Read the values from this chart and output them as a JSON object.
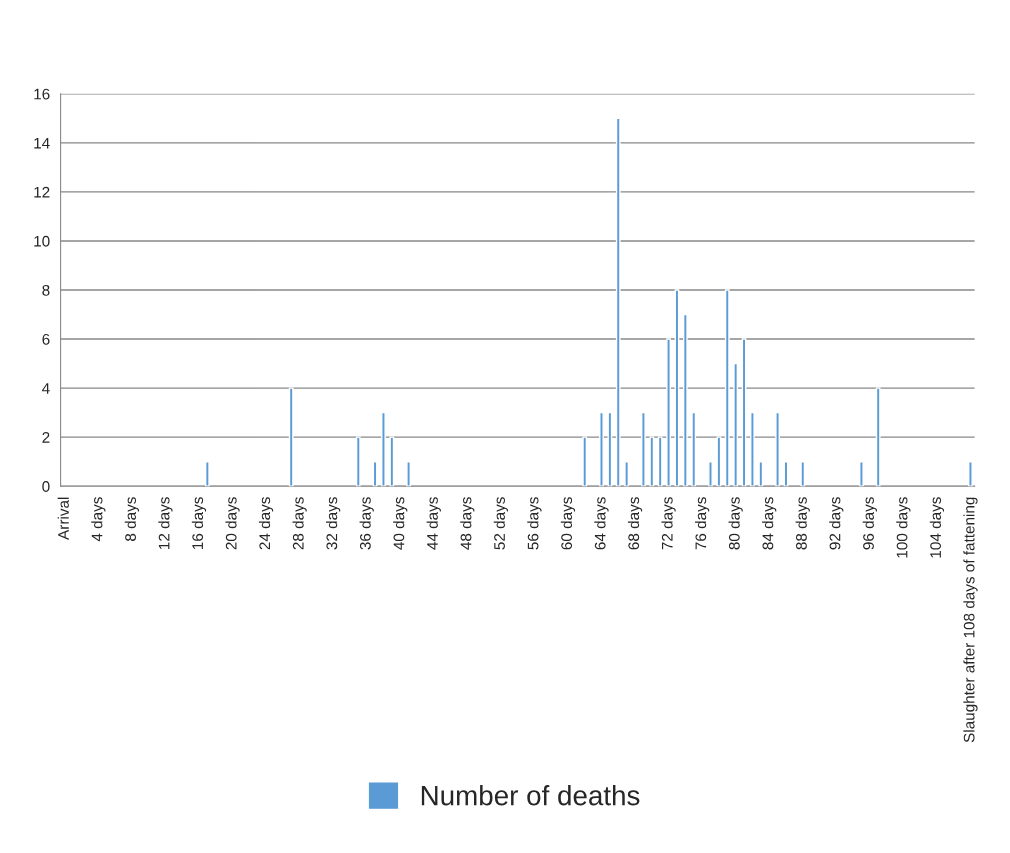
{
  "chart_data": {
    "type": "bar",
    "categories": [
      "Arrival",
      null,
      null,
      null,
      "4 days",
      null,
      null,
      null,
      "8 days",
      null,
      null,
      null,
      "12 days",
      null,
      null,
      null,
      "16 days",
      null,
      null,
      null,
      "20 days",
      null,
      null,
      null,
      "24 days",
      null,
      null,
      null,
      "28 days",
      null,
      null,
      null,
      "32 days",
      null,
      null,
      null,
      "36 days",
      null,
      null,
      null,
      "40 days",
      null,
      null,
      null,
      "44 days",
      null,
      null,
      null,
      "48 days",
      null,
      null,
      null,
      "52 days",
      null,
      null,
      null,
      "56 days",
      null,
      null,
      null,
      "60 days",
      null,
      null,
      null,
      "64 days",
      null,
      null,
      null,
      "68 days",
      null,
      null,
      null,
      "72 days",
      null,
      null,
      null,
      "76 days",
      null,
      null,
      null,
      "80 days",
      null,
      null,
      null,
      "84 days",
      null,
      null,
      null,
      "88 days",
      null,
      null,
      null,
      "92 days",
      null,
      null,
      null,
      "96 days",
      null,
      null,
      null,
      "100 days",
      null,
      null,
      null,
      "104 days",
      null,
      null,
      null,
      "Slaughter after 108 days of fattening"
    ],
    "series": [
      {
        "name": "Number of deaths",
        "color": "#5b9bd5",
        "values": [
          0,
          0,
          0,
          0,
          0,
          0,
          0,
          0,
          0,
          0,
          0,
          0,
          0,
          0,
          0,
          0,
          0,
          1,
          0,
          0,
          0,
          0,
          0,
          0,
          0,
          0,
          0,
          4,
          0,
          0,
          0,
          0,
          0,
          0,
          0,
          2,
          0,
          1,
          3,
          2,
          0,
          1,
          0,
          0,
          0,
          0,
          0,
          0,
          0,
          0,
          0,
          0,
          0,
          0,
          0,
          0,
          0,
          0,
          0,
          0,
          0,
          0,
          2,
          0,
          3,
          3,
          15,
          1,
          0,
          3,
          2,
          2,
          6,
          8,
          7,
          3,
          0,
          1,
          2,
          8,
          5,
          6,
          3,
          1,
          0,
          3,
          1,
          0,
          1,
          0,
          0,
          0,
          0,
          0,
          0,
          1,
          0,
          4,
          0,
          0,
          0,
          0,
          0,
          0,
          0,
          0,
          0,
          0,
          1
        ]
      }
    ],
    "ylim": [
      0,
      16
    ],
    "yticks": [
      0,
      2,
      4,
      6,
      8,
      10,
      12,
      14,
      16
    ],
    "grid": "y",
    "legend": "bottom"
  }
}
